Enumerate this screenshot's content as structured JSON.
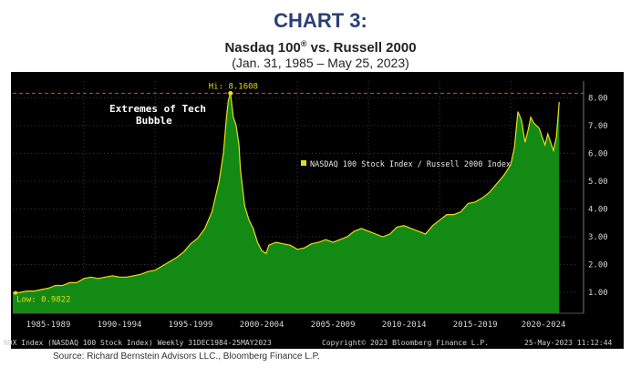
{
  "header": {
    "heading": "CHART 3:",
    "title_main": "Nasdaq 100",
    "title_mark": "®",
    "title_rest": " vs. Russell 2000",
    "date_range": "(Jan. 31, 1985 – May 25, 2023)"
  },
  "footer": {
    "left": "NDX Index (NASDAQ 100 Stock Index)  Weekly 31DEC1984-25MAY2023",
    "center": "Copyright© 2023 Bloomberg Finance L.P.",
    "right": "25-May-2023 11:12:44",
    "source": "Source:  Richard Bernstein Advisors LLC., Bloomberg Finance L.P."
  },
  "colors": {
    "area": "#138a13",
    "line": "#e8dc1a",
    "hi_line": "#e03030",
    "axis_text": "#d8d8d8"
  },
  "chart_data": {
    "type": "area",
    "series": [
      {
        "name": "NASDAQ 100 Stock Index / Russell 2000 Index"
      }
    ],
    "x": [
      1985.0,
      1985.5,
      1986.0,
      1986.5,
      1987.0,
      1987.5,
      1988.0,
      1988.5,
      1989.0,
      1989.5,
      1990.0,
      1990.5,
      1991.0,
      1991.5,
      1992.0,
      1992.5,
      1993.0,
      1993.5,
      1994.0,
      1994.5,
      1995.0,
      1995.5,
      1996.0,
      1996.5,
      1997.0,
      1997.5,
      1998.0,
      1998.5,
      1999.0,
      1999.5,
      1999.8,
      2000.0,
      2000.15,
      2000.3,
      2000.5,
      2000.7,
      2000.9,
      2001.0,
      2001.3,
      2001.6,
      2001.9,
      2002.2,
      2002.5,
      2002.8,
      2003.0,
      2003.5,
      2004.0,
      2004.5,
      2005.0,
      2005.5,
      2006.0,
      2006.5,
      2007.0,
      2007.5,
      2008.0,
      2008.5,
      2009.0,
      2009.5,
      2010.0,
      2010.5,
      2011.0,
      2011.5,
      2012.0,
      2012.5,
      2013.0,
      2013.5,
      2014.0,
      2014.5,
      2015.0,
      2015.5,
      2016.0,
      2016.5,
      2017.0,
      2017.5,
      2018.0,
      2018.5,
      2019.0,
      2019.5,
      2020.0,
      2020.25,
      2020.5,
      2020.75,
      2021.0,
      2021.2,
      2021.4,
      2021.6,
      2021.8,
      2022.0,
      2022.2,
      2022.4,
      2022.6,
      2022.8,
      2023.0,
      2023.2,
      2023.4
    ],
    "y": [
      0.98,
      1.0,
      1.05,
      1.05,
      1.1,
      1.15,
      1.25,
      1.25,
      1.35,
      1.35,
      1.5,
      1.55,
      1.5,
      1.55,
      1.6,
      1.55,
      1.55,
      1.6,
      1.65,
      1.75,
      1.8,
      1.95,
      2.1,
      2.25,
      2.45,
      2.75,
      2.95,
      3.3,
      3.9,
      5.0,
      6.0,
      7.2,
      7.9,
      8.1608,
      7.3,
      7.0,
      6.3,
      5.4,
      4.1,
      3.6,
      3.3,
      2.8,
      2.5,
      2.4,
      2.7,
      2.8,
      2.75,
      2.7,
      2.55,
      2.6,
      2.75,
      2.8,
      2.9,
      2.8,
      2.9,
      3.0,
      3.2,
      3.3,
      3.2,
      3.1,
      3.0,
      3.1,
      3.35,
      3.4,
      3.3,
      3.2,
      3.1,
      3.4,
      3.6,
      3.8,
      3.8,
      3.9,
      4.2,
      4.25,
      4.4,
      4.6,
      4.9,
      5.2,
      5.6,
      6.2,
      7.5,
      7.2,
      6.4,
      6.8,
      7.3,
      7.1,
      7.0,
      6.9,
      6.6,
      6.3,
      6.7,
      6.4,
      6.1,
      6.6,
      7.85
    ],
    "hi": {
      "label": "Hi: 8.1608",
      "x": 2000.3,
      "y": 8.1608
    },
    "low": {
      "label": "Low: 0.9822",
      "y": 0.9822
    },
    "annotation": {
      "lines": [
        "Extremes of Tech",
        "Bubble"
      ]
    },
    "ylim": [
      0.25,
      8.6
    ],
    "xlim": [
      1985.0,
      2024.6
    ],
    "yticks": [
      1.0,
      2.0,
      3.0,
      4.0,
      5.0,
      6.0,
      7.0,
      8.0
    ],
    "ytick_labels": [
      "1.00",
      "2.00",
      "3.00",
      "4.00",
      "5.00",
      "6.00",
      "7.00",
      "8.00"
    ],
    "xticks": [
      {
        "label": "1985-1989",
        "from": 1985.0,
        "to": 1990.0
      },
      {
        "label": "1990-1994",
        "from": 1990.0,
        "to": 1995.0
      },
      {
        "label": "1995-1999",
        "from": 1995.0,
        "to": 2000.0
      },
      {
        "label": "2000-2004",
        "from": 2000.0,
        "to": 2005.0
      },
      {
        "label": "2005-2009",
        "from": 2005.0,
        "to": 2010.0
      },
      {
        "label": "2010-2014",
        "from": 2010.0,
        "to": 2015.0
      },
      {
        "label": "2015-2019",
        "from": 2015.0,
        "to": 2020.0
      },
      {
        "label": "2020-2024",
        "from": 2020.0,
        "to": 2024.6
      }
    ],
    "legend": "center-right",
    "grid": true
  }
}
